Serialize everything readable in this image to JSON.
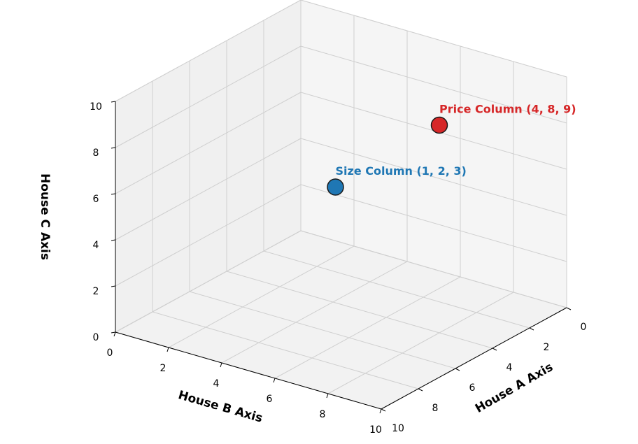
{
  "chart_data": {
    "type": "scatter3d",
    "xlabel": "House A Axis",
    "ylabel": "House B Axis",
    "zlabel": "House C Axis",
    "xlim": [
      0,
      10
    ],
    "ylim": [
      0,
      10
    ],
    "zlim": [
      0,
      10
    ],
    "xticks": [
      0,
      2,
      4,
      6,
      8,
      10
    ],
    "yticks": [
      0,
      2,
      4,
      6,
      8,
      10
    ],
    "zticks": [
      0,
      2,
      4,
      6,
      8,
      10
    ],
    "grid": true,
    "series": [
      {
        "name": "Size Column (1, 2, 3)",
        "color": "#1f77b4",
        "x": [
          1
        ],
        "y": [
          2
        ],
        "z": [
          3
        ]
      },
      {
        "name": "Price Column (4, 8, 9)",
        "color": "#d62728",
        "x": [
          4
        ],
        "y": [
          8
        ],
        "z": [
          9
        ]
      }
    ]
  }
}
